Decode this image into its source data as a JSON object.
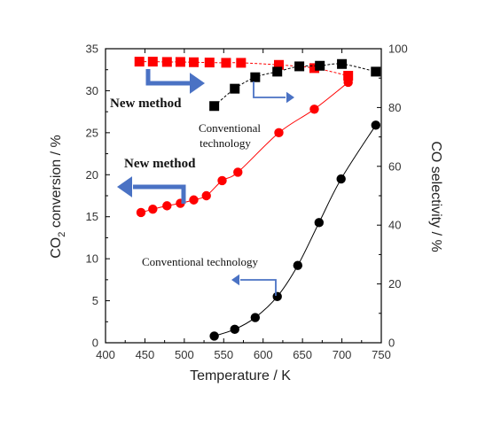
{
  "chart_data": {
    "type": "scatter",
    "x_axis": {
      "label": "Temperature / K",
      "range": [
        400,
        750
      ],
      "ticks": [
        "400",
        "450",
        "500",
        "550",
        "600",
        "650",
        "700",
        "750"
      ]
    },
    "y_left": {
      "label_main": "CO",
      "label_sub": "2",
      "label_rest": " conversion / %",
      "range": [
        0,
        35
      ],
      "ticks": [
        "0",
        "5",
        "10",
        "15",
        "20",
        "25",
        "30",
        "35"
      ]
    },
    "y_right": {
      "label": "CO selectivity / %",
      "range": [
        0,
        100
      ],
      "ticks": [
        "0",
        "20",
        "40",
        "60",
        "80",
        "100"
      ]
    },
    "series": [
      {
        "axis": "left",
        "marker": "circle",
        "color": "#ff0000",
        "line": "solid",
        "x": [
          445,
          460,
          478,
          495,
          512,
          528,
          548,
          568,
          620,
          665,
          708
        ],
        "y": [
          15.5,
          15.9,
          16.3,
          16.6,
          17.0,
          17.5,
          19.3,
          20.3,
          25.0,
          27.8,
          31.0
        ]
      },
      {
        "axis": "right",
        "marker": "square",
        "color": "#ff0000",
        "line": "dashed",
        "x": [
          443,
          460,
          478,
          495,
          512,
          532,
          553,
          572,
          620,
          665,
          708
        ],
        "y": [
          95.6,
          95.6,
          95.5,
          95.5,
          95.4,
          95.3,
          95.2,
          95.2,
          94.5,
          93.4,
          90.8
        ]
      },
      {
        "axis": "left",
        "marker": "circle",
        "color": "#000000",
        "line": "solid",
        "x": [
          538,
          564,
          590,
          618,
          644,
          671,
          699,
          743
        ],
        "y": [
          0.8,
          1.6,
          3.0,
          5.5,
          9.2,
          14.3,
          19.5,
          25.9
        ]
      },
      {
        "axis": "right",
        "marker": "square",
        "color": "#000000",
        "line": "dashed",
        "x": [
          538,
          564,
          590,
          618,
          646,
          672,
          700,
          743
        ],
        "y": [
          80.5,
          86.4,
          90.3,
          92.2,
          94.0,
          94.2,
          94.8,
          92.2
        ]
      }
    ],
    "annotations": [
      {
        "text": "New method",
        "style": "bold"
      },
      {
        "text": "Conventional",
        "style": "normal"
      },
      {
        "text": "technology",
        "style": "normal"
      },
      {
        "text": "New method",
        "style": "bold"
      },
      {
        "text": "Conventional technology",
        "style": "normal"
      }
    ],
    "arrow_color": "#4a72c4"
  }
}
